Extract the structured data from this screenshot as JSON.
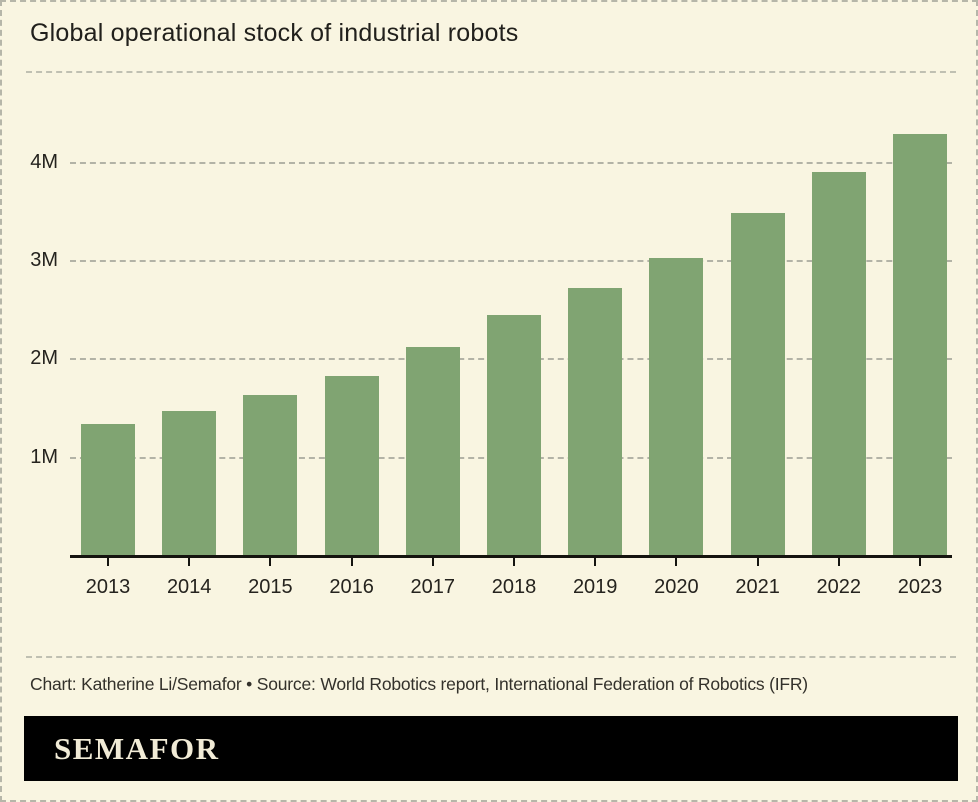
{
  "page": {
    "title": "Global operational stock of industrial robots",
    "credit": "Chart: Katherine Li/Semafor • Source: World Robotics report, International Federation of Robotics (IFR)",
    "logo_text": "SEMAFOR"
  },
  "colors": {
    "background": "#f9f5e1",
    "bar": "#80a472",
    "grid": "#b3b3a6",
    "axis": "#15140f",
    "title_text": "#21201c",
    "credit_text": "#33312b",
    "logo_bg": "#000000",
    "logo_text": "#f1ebd6"
  },
  "chart_data": {
    "type": "bar",
    "title": "Global operational stock of industrial robots",
    "categories": [
      "2013",
      "2014",
      "2015",
      "2016",
      "2017",
      "2018",
      "2019",
      "2020",
      "2021",
      "2022",
      "2023"
    ],
    "values": [
      1.33,
      1.47,
      1.63,
      1.82,
      2.12,
      2.44,
      2.72,
      3.02,
      3.48,
      3.9,
      4.28
    ],
    "unit": "M",
    "xlabel": "",
    "ylabel": "",
    "ylim": [
      0,
      4.65
    ],
    "yticks": [
      {
        "value": 1,
        "label": "1M"
      },
      {
        "value": 2,
        "label": "2M"
      },
      {
        "value": 3,
        "label": "3M"
      },
      {
        "value": 4,
        "label": "4M"
      }
    ],
    "grid": true,
    "legend": false
  }
}
